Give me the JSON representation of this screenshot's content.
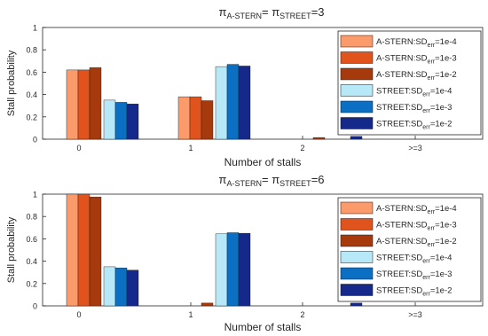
{
  "chart_data": [
    {
      "type": "bar",
      "title_parts": {
        "pi1": "π",
        "sub1": "A-STERN",
        "eq": "= ",
        "pi2": "π",
        "sub2": "STREET",
        "val": "=3"
      },
      "xlabel": "Number of stalls",
      "ylabel": "Stall probability",
      "ylim": [
        0,
        1
      ],
      "yticks": [
        "0",
        "0.2",
        "0.4",
        "0.6",
        "0.8",
        "1"
      ],
      "categories": [
        "0",
        "1",
        "2",
        ">=3"
      ],
      "series": [
        {
          "name": "A-STERN:SD_err=1e-4",
          "color": "#fb9a6b",
          "values": [
            0.62,
            0.38,
            0.0,
            0.0
          ]
        },
        {
          "name": "A-STERN:SD_err=1e-3",
          "color": "#e0531c",
          "values": [
            0.62,
            0.38,
            0.0,
            0.0
          ]
        },
        {
          "name": "A-STERN:SD_err=1e-2",
          "color": "#a63a0c",
          "values": [
            0.64,
            0.345,
            0.015,
            0.0
          ]
        },
        {
          "name": "STREET:SD_err=1e-4",
          "color": "#b7e8f7",
          "values": [
            0.35,
            0.65,
            0.0,
            0.0
          ]
        },
        {
          "name": "STREET:SD_err=1e-3",
          "color": "#0b6fc4",
          "values": [
            0.33,
            0.67,
            0.0,
            0.0
          ]
        },
        {
          "name": "STREET:SD_err=1e-2",
          "color": "#14298a",
          "values": [
            0.315,
            0.655,
            0.025,
            0.0
          ]
        }
      ],
      "legend": {
        "location": "top-right",
        "entries": [
          {
            "prefix": "A-STERN:SD",
            "sub": "err",
            "suffix": "=1e-4"
          },
          {
            "prefix": "A-STERN:SD",
            "sub": "err",
            "suffix": "=1e-3"
          },
          {
            "prefix": "A-STERN:SD",
            "sub": "err",
            "suffix": "=1e-2"
          },
          {
            "prefix": "STREET:SD",
            "sub": "err",
            "suffix": "=1e-4"
          },
          {
            "prefix": "STREET:SD",
            "sub": "err",
            "suffix": "=1e-3"
          },
          {
            "prefix": "STREET:SD",
            "sub": "err",
            "suffix": "=1e-2"
          }
        ]
      },
      "grid": false
    },
    {
      "type": "bar",
      "title_parts": {
        "pi1": "π",
        "sub1": "A-STERN",
        "eq": "= ",
        "pi2": "π",
        "sub2": "STREET",
        "val": "=6"
      },
      "xlabel": "Number of stalls",
      "ylabel": "Stall probability",
      "ylim": [
        0,
        1
      ],
      "yticks": [
        "0",
        "0.2",
        "0.4",
        "0.6",
        "0.8",
        "1"
      ],
      "categories": [
        "0",
        "1",
        "2",
        ">=3"
      ],
      "series": [
        {
          "name": "A-STERN:SD_err=1e-4",
          "color": "#fb9a6b",
          "values": [
            1.0,
            0.0,
            0.0,
            0.0
          ]
        },
        {
          "name": "A-STERN:SD_err=1e-3",
          "color": "#e0531c",
          "values": [
            1.0,
            0.0,
            0.0,
            0.0
          ]
        },
        {
          "name": "A-STERN:SD_err=1e-2",
          "color": "#a63a0c",
          "values": [
            0.975,
            0.025,
            0.0,
            0.0
          ]
        },
        {
          "name": "STREET:SD_err=1e-4",
          "color": "#b7e8f7",
          "values": [
            0.35,
            0.645,
            0.0,
            0.0
          ]
        },
        {
          "name": "STREET:SD_err=1e-3",
          "color": "#0b6fc4",
          "values": [
            0.34,
            0.655,
            0.0,
            0.0
          ]
        },
        {
          "name": "STREET:SD_err=1e-2",
          "color": "#14298a",
          "values": [
            0.32,
            0.65,
            0.025,
            0.0
          ]
        }
      ],
      "legend": {
        "location": "top-right",
        "entries": [
          {
            "prefix": "A-STERN:SD",
            "sub": "err",
            "suffix": "=1e-4"
          },
          {
            "prefix": "A-STERN:SD",
            "sub": "err",
            "suffix": "=1e-3"
          },
          {
            "prefix": "A-STERN:SD",
            "sub": "err",
            "suffix": "=1e-2"
          },
          {
            "prefix": "STREET:SD",
            "sub": "err",
            "suffix": "=1e-4"
          },
          {
            "prefix": "STREET:SD",
            "sub": "err",
            "suffix": "=1e-3"
          },
          {
            "prefix": "STREET:SD",
            "sub": "err",
            "suffix": "=1e-2"
          }
        ]
      },
      "grid": false
    }
  ]
}
